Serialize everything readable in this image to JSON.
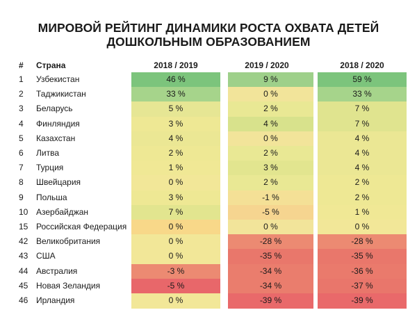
{
  "title_line1": "МИРОВОЙ РЕЙТИНГ ДИНАМИКИ РОСТА ОХВАТА ДЕТЕЙ",
  "title_line2": "ДОШКОЛЬНЫМ ОБРАЗОВАНИЕМ",
  "headers": {
    "rank": "#",
    "country": "Страна",
    "col1": "2018 / 2019",
    "col2": "2019 / 2020",
    "col3": "2018 / 2020"
  },
  "chart_data": {
    "type": "table",
    "columns": [
      "2018 / 2019",
      "2019 / 2020",
      "2018 / 2020"
    ],
    "rows": [
      {
        "rank": "1",
        "country": "Узбекистан",
        "values": [
          46,
          9,
          59
        ]
      },
      {
        "rank": "2",
        "country": "Таджикистан",
        "values": [
          33,
          0,
          33
        ]
      },
      {
        "rank": "3",
        "country": "Беларусь",
        "values": [
          5,
          2,
          7
        ]
      },
      {
        "rank": "4",
        "country": "Финляндия",
        "values": [
          3,
          4,
          7
        ]
      },
      {
        "rank": "5",
        "country": "Казахстан",
        "values": [
          4,
          0,
          4
        ]
      },
      {
        "rank": "6",
        "country": "Литва",
        "values": [
          2,
          2,
          4
        ]
      },
      {
        "rank": "7",
        "country": "Турция",
        "values": [
          1,
          3,
          4
        ]
      },
      {
        "rank": "8",
        "country": "Швейцария",
        "values": [
          0,
          2,
          2
        ]
      },
      {
        "rank": "9",
        "country": "Польша",
        "values": [
          3,
          -1,
          2
        ]
      },
      {
        "rank": "10",
        "country": "Азербайджан",
        "values": [
          7,
          -5,
          1
        ]
      },
      {
        "rank": "15",
        "country": "Российская Федерация",
        "values": [
          0,
          0,
          0
        ]
      },
      {
        "rank": "42",
        "country": "Великобритания",
        "values": [
          0,
          -28,
          -28
        ]
      },
      {
        "rank": "43",
        "country": "США",
        "values": [
          0,
          -35,
          -35
        ]
      },
      {
        "rank": "44",
        "country": "Австралия",
        "values": [
          -3,
          -34,
          -36
        ]
      },
      {
        "rank": "45",
        "country": "Новая Зеландия",
        "values": [
          -5,
          -34,
          -37
        ]
      },
      {
        "rank": "46",
        "country": "Ирландия",
        "values": [
          0,
          -39,
          -39
        ]
      }
    ],
    "colors": [
      [
        "#7cc47c",
        "#9ed08a",
        "#7cc47c"
      ],
      [
        "#a6d48b",
        "#f2e49a",
        "#a6d48b"
      ],
      [
        "#e6e694",
        "#e9e894",
        "#e0e48f"
      ],
      [
        "#eee894",
        "#d8e28c",
        "#e0e48f"
      ],
      [
        "#ebe794",
        "#f2e49a",
        "#ebe794"
      ],
      [
        "#eee894",
        "#e9e894",
        "#ebe794"
      ],
      [
        "#f0e895",
        "#e2e58f",
        "#ebe794"
      ],
      [
        "#f2e798",
        "#e9e894",
        "#eee894"
      ],
      [
        "#eee894",
        "#f4e096",
        "#eee894"
      ],
      [
        "#e2e58f",
        "#f6d590",
        "#f0e895"
      ],
      [
        "#f8d889",
        "#f2e49a",
        "#f2e798"
      ],
      [
        "#f2e798",
        "#ec8a72",
        "#ec8a72"
      ],
      [
        "#f2e798",
        "#e9776b",
        "#e9776b"
      ],
      [
        "#ec8a72",
        "#ea7d6d",
        "#ea7a6c"
      ],
      [
        "#e8676a",
        "#ea7d6d",
        "#e9766b"
      ],
      [
        "#f2e798",
        "#e9696a",
        "#e9696a"
      ]
    ],
    "value_suffix": " %"
  }
}
